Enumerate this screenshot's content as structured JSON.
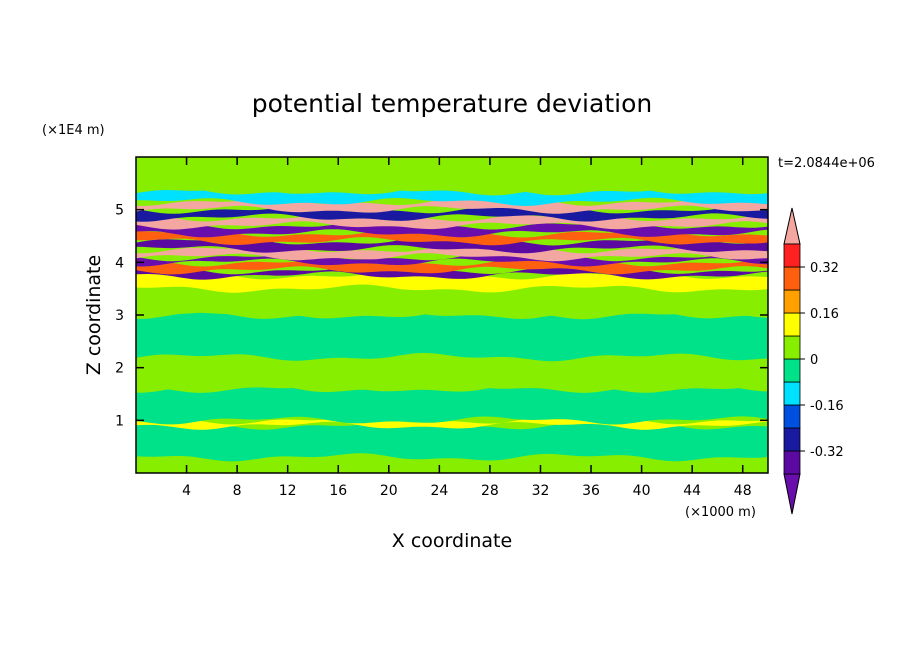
{
  "chart_data": {
    "type": "heatmap",
    "title": "potential temperature deviation",
    "time_label": "t=2.0844e+06",
    "xlabel": "X coordinate",
    "ylabel": "Z coordinate",
    "x_scale_label": "(×1000 m)",
    "y_scale_label": "(×1E4 m)",
    "xlim": [
      0,
      50
    ],
    "ylim": [
      0,
      6
    ],
    "x_ticks": [
      4,
      8,
      12,
      16,
      20,
      24,
      28,
      32,
      36,
      40,
      44,
      48
    ],
    "y_ticks": [
      1,
      2,
      3,
      4,
      5
    ],
    "colorbar": {
      "levels": [
        -0.48,
        -0.4,
        -0.32,
        -0.24,
        -0.16,
        -0.08,
        0,
        0.08,
        0.16,
        0.24,
        0.32,
        0.4,
        0.48
      ],
      "colors": [
        "#6a0dad",
        "#5a0aa0",
        "#1a1aa0",
        "#0050e0",
        "#00e0ff",
        "#00e28a",
        "#88ee00",
        "#ffff00",
        "#ffa000",
        "#ff6010",
        "#ff2020",
        "#f4a7a0"
      ],
      "labels": [
        "0.32",
        "0.16",
        "0",
        "-0.16",
        "-0.32"
      ],
      "label_values": [
        0.32,
        0.16,
        0,
        -0.16,
        -0.32
      ]
    },
    "bands": [
      {
        "z": [
          0.0,
          0.3
        ],
        "value": 0.02
      },
      {
        "z": [
          0.3,
          0.9
        ],
        "value": -0.02
      },
      {
        "z": [
          0.9,
          1.0
        ],
        "value": 0.1
      },
      {
        "z": [
          1.0,
          1.6
        ],
        "value": -0.03
      },
      {
        "z": [
          1.6,
          2.2
        ],
        "value": 0.03
      },
      {
        "z": [
          2.2,
          3.0
        ],
        "value": -0.02
      },
      {
        "z": [
          3.0,
          3.5
        ],
        "value": 0.02
      },
      {
        "z": [
          3.5,
          3.75
        ],
        "value": 0.1
      },
      {
        "z": [
          3.75,
          3.85
        ],
        "value": -0.35
      },
      {
        "z": [
          3.85,
          4.0
        ],
        "value": 0.25
      },
      {
        "z": [
          4.0,
          4.1
        ],
        "value": -0.45
      },
      {
        "z": [
          4.1,
          4.25
        ],
        "value": 0.45
      },
      {
        "z": [
          4.25,
          4.4
        ],
        "value": -0.4
      },
      {
        "z": [
          4.4,
          4.55
        ],
        "value": 0.3
      },
      {
        "z": [
          4.55,
          4.7
        ],
        "value": -0.45
      },
      {
        "z": [
          4.7,
          4.85
        ],
        "value": 0.45
      },
      {
        "z": [
          4.85,
          5.0
        ],
        "value": -0.3
      },
      {
        "z": [
          5.0,
          5.15
        ],
        "value": 0.45
      },
      {
        "z": [
          5.15,
          5.35
        ],
        "value": -0.1
      },
      {
        "z": [
          5.35,
          6.0
        ],
        "value": 0.02
      }
    ]
  }
}
